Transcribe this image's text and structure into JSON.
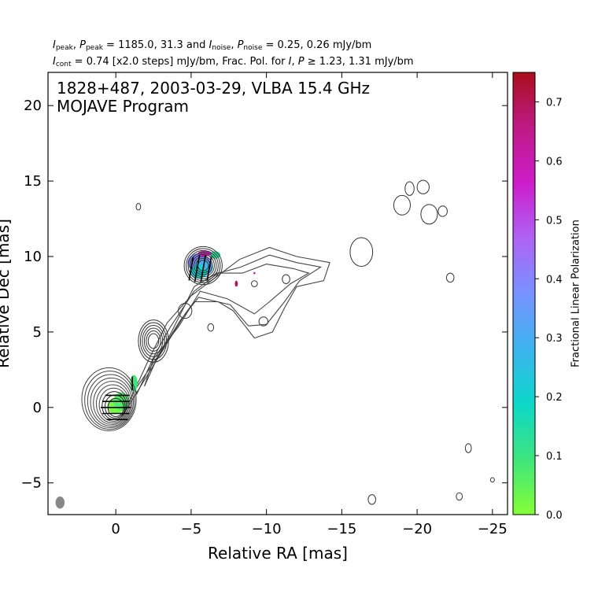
{
  "header": {
    "line1": {
      "peak_label": "peak",
      "peak_values": "1185.0, 31.3",
      "noise_label": "noise",
      "noise_values": "0.25, 0.26 mJy/bm"
    },
    "line2": {
      "cont_label": "cont",
      "cont_text": "= 0.74 [x2.0 steps] mJy/bm, Frac. Pol. for",
      "pol_text": "≥ 1.23, 1.31 mJy/bm"
    }
  },
  "chart_data": {
    "type": "contour",
    "source_title": "1828+487, 2003-03-29, VLBA 15.4 GHz",
    "program": "MOJAVE Program",
    "xlabel": "Relative RA [mas]",
    "ylabel": "Relative Dec [mas]",
    "xlim": [
      4.5,
      -26
    ],
    "ylim": [
      -7.1,
      22.2
    ],
    "x_ticks": [
      0,
      -5,
      -10,
      -15,
      -20,
      -25
    ],
    "x_tick_labels": [
      "0",
      "−5",
      "−10",
      "−15",
      "−20",
      "−25"
    ],
    "y_ticks": [
      -5,
      0,
      5,
      10,
      15,
      20
    ],
    "y_tick_labels": [
      "−5",
      "0",
      "5",
      "10",
      "15",
      "20"
    ],
    "colorbar": {
      "label": "Fractional Linear Polarization",
      "range": [
        0.0,
        0.75
      ],
      "ticks": [
        0.0,
        0.1,
        0.2,
        0.3,
        0.4,
        0.5,
        0.6,
        0.7
      ],
      "tick_labels": [
        "0.0",
        "0.1",
        "0.2",
        "0.3",
        "0.4",
        "0.5",
        "0.6",
        "0.7"
      ],
      "gradient_stops": [
        "#84ff35",
        "#3ee57e",
        "#0dd7c8",
        "#3cb4ef",
        "#7892ff",
        "#ae63f5",
        "#cd1dca",
        "#be1a86",
        "#a90f1a"
      ]
    },
    "core": {
      "ra": 0.0,
      "dec": 0.0,
      "contour_radii_mas": [
        0.55,
        0.7,
        0.85,
        1.0,
        1.15,
        1.3,
        1.45,
        1.6,
        1.75,
        1.9
      ]
    },
    "components": [
      {
        "ra": -2.5,
        "dec": 4.4,
        "rx": 1.0,
        "ry": 1.4,
        "rings": 6
      },
      {
        "ra": -5.8,
        "dec": 9.4,
        "rx": 1.0,
        "ry": 1.0,
        "rings": 8
      }
    ],
    "isolated_contours": [
      {
        "ra": -17.0,
        "dec": -6.1,
        "rx": 0.25,
        "ry": 0.32
      },
      {
        "ra": -22.8,
        "dec": -5.9,
        "rx": 0.2,
        "ry": 0.25
      },
      {
        "ra": -23.4,
        "dec": -2.7,
        "rx": 0.2,
        "ry": 0.3
      },
      {
        "ra": -25.0,
        "dec": -4.8,
        "rx": 0.13,
        "ry": 0.15
      },
      {
        "ra": -1.5,
        "dec": 13.3,
        "rx": 0.15,
        "ry": 0.22
      },
      {
        "ra": -22.2,
        "dec": 8.6,
        "rx": 0.25,
        "ry": 0.3
      },
      {
        "ra": -19.5,
        "dec": 14.5,
        "rx": 0.3,
        "ry": 0.45
      },
      {
        "ra": -20.4,
        "dec": 14.6,
        "rx": 0.4,
        "ry": 0.45
      },
      {
        "ra": -16.3,
        "dec": 10.3,
        "rx": 0.75,
        "ry": 0.95
      },
      {
        "ra": -19.0,
        "dec": 13.4,
        "rx": 0.55,
        "ry": 0.65
      },
      {
        "ra": -20.8,
        "dec": 12.8,
        "rx": 0.55,
        "ry": 0.65
      },
      {
        "ra": -21.7,
        "dec": 13.0,
        "rx": 0.3,
        "ry": 0.35
      },
      {
        "ra": -6.3,
        "dec": 5.3,
        "rx": 0.2,
        "ry": 0.25
      },
      {
        "ra": -9.2,
        "dec": 8.2,
        "rx": 0.2,
        "ry": 0.2
      },
      {
        "ra": -11.3,
        "dec": 8.5,
        "rx": 0.25,
        "ry": 0.3
      },
      {
        "ra": -9.8,
        "dec": 5.7,
        "rx": 0.3,
        "ry": 0.3
      },
      {
        "ra": -4.6,
        "dec": 6.4,
        "rx": 0.45,
        "ry": 0.5
      }
    ],
    "pol_patches": [
      {
        "ra": 0.0,
        "dec": 0.1,
        "rx": 0.55,
        "ry": 0.55,
        "frac": 0.02
      },
      {
        "ra": -0.35,
        "dec": 0.4,
        "rx": 0.5,
        "ry": 0.6,
        "frac": 0.07
      },
      {
        "ra": -1.2,
        "dec": 1.6,
        "rx": 0.25,
        "ry": 0.55,
        "frac": 0.09
      },
      {
        "ra": -5.5,
        "dec": 9.6,
        "rx": 0.75,
        "ry": 0.6,
        "frac": 0.4
      },
      {
        "ra": -5.8,
        "dec": 9.3,
        "rx": 0.65,
        "ry": 0.55,
        "frac": 0.3
      },
      {
        "ra": -5.5,
        "dec": 9.0,
        "rx": 0.6,
        "ry": 0.45,
        "frac": 0.2
      },
      {
        "ra": -6.6,
        "dec": 10.1,
        "rx": 0.35,
        "ry": 0.25,
        "frac": 0.13
      },
      {
        "ra": -5.9,
        "dec": 10.2,
        "rx": 0.45,
        "ry": 0.18,
        "frac": 0.6
      },
      {
        "ra": -8.0,
        "dec": 8.2,
        "rx": 0.1,
        "ry": 0.2,
        "frac": 0.7
      },
      {
        "ra": -9.2,
        "dec": 8.9,
        "rx": 0.07,
        "ry": 0.07,
        "frac": 0.6
      }
    ],
    "evpa_ticks": [
      {
        "ra": -0.1,
        "dec": 0.8,
        "len": 1.6,
        "angle": 0
      },
      {
        "ra": 0.0,
        "dec": 0.4,
        "len": 1.8,
        "angle": 0
      },
      {
        "ra": 0.0,
        "dec": 0.0,
        "len": 2.0,
        "angle": 0
      },
      {
        "ra": 0.0,
        "dec": -0.4,
        "len": 1.8,
        "angle": 0
      },
      {
        "ra": -0.1,
        "dec": -0.8,
        "len": 1.4,
        "angle": 0
      },
      {
        "ra": -1.1,
        "dec": 1.6,
        "len": 0.9,
        "angle": 90
      },
      {
        "ra": -5.0,
        "dec": 9.2,
        "len": 1.6,
        "angle": 80
      },
      {
        "ra": -5.4,
        "dec": 9.2,
        "len": 1.8,
        "angle": 80
      },
      {
        "ra": -5.8,
        "dec": 9.2,
        "len": 1.8,
        "angle": 80
      },
      {
        "ra": -6.2,
        "dec": 9.2,
        "len": 1.6,
        "angle": 80
      }
    ],
    "beam": {
      "ra": 3.7,
      "dec": -6.3,
      "major": 0.8,
      "minor": 0.6,
      "angle": 0
    }
  }
}
